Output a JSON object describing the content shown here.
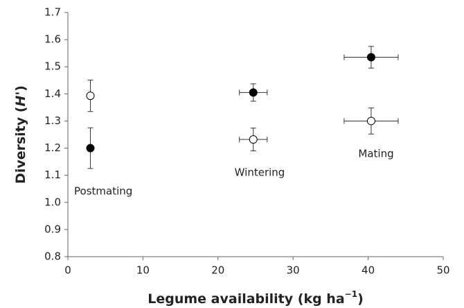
{
  "chart_data": {
    "type": "scatter",
    "xlabel_parts": [
      "Legume availability (kg ha",
      "−1",
      ")"
    ],
    "ylabel_parts": [
      "Diversity (",
      "H'",
      ")"
    ],
    "xlim": [
      0,
      50
    ],
    "xticks": [
      0,
      10,
      20,
      30,
      40,
      50
    ],
    "ylim": [
      0.8,
      1.7
    ],
    "yticks": [
      0.8,
      0.9,
      {
        "value": 1,
        "label": "1.0"
      },
      1.1,
      1.2,
      1.3,
      1.4,
      1.5,
      1.6,
      1.7
    ],
    "series": [
      {
        "color": "#000000",
        "x": [
          3,
          24.7,
          40.4
        ],
        "values": [
          1.2,
          1.405,
          1.535
        ],
        "xerr": [
          0,
          1.85,
          3.6
        ],
        "yerr": [
          0.075,
          0.032,
          0.04
        ]
      },
      {
        "color": "#ffffff",
        "x": [
          3,
          24.7,
          40.4
        ],
        "values": [
          1.393,
          1.232,
          1.3
        ],
        "xerr": [
          0,
          1.85,
          3.6
        ],
        "yerr": [
          0.058,
          0.042,
          0.048
        ]
      }
    ],
    "annotations": [
      "Postmating",
      "Wintering",
      "Mating"
    ]
  }
}
